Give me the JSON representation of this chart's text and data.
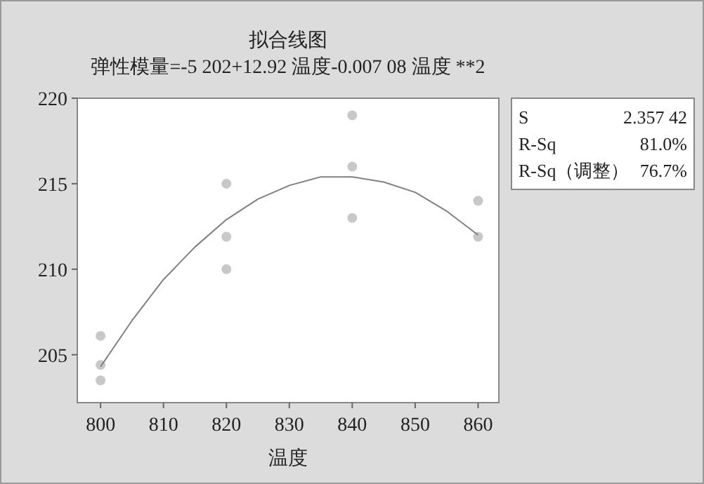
{
  "chart_data": {
    "type": "scatter",
    "title": "拟合线图",
    "subtitle": "弹性模量=-5 202+12.92 温度-0.007 08 温度 **2",
    "xlabel": "温度",
    "xlim": [
      796.3,
      863.3
    ],
    "xticks": [
      800,
      810,
      820,
      830,
      840,
      850,
      860
    ],
    "ylim": [
      202.2,
      220
    ],
    "yticks": [
      205,
      210,
      215,
      220
    ],
    "series": [
      {
        "color": "#c8c8c8",
        "marker": "circle",
        "x": [
          800,
          800,
          800,
          820,
          820,
          820,
          840,
          840,
          840,
          860,
          860
        ],
        "values": [
          206.1,
          204.4,
          203.5,
          215,
          211.9,
          210,
          219,
          216,
          213,
          214,
          211.9
        ]
      },
      {
        "type": "line",
        "color": "#808080",
        "marker": "none",
        "x": [
          800,
          805,
          810,
          815,
          820,
          825,
          830,
          835,
          840,
          845,
          850,
          855,
          860
        ],
        "values": [
          204.3,
          207.0,
          209.4,
          211.3,
          212.9,
          214.1,
          214.9,
          215.4,
          215.4,
          215.1,
          214.5,
          213.4,
          212.0
        ]
      }
    ],
    "annotations": [
      "S",
      "2.357 42",
      "R-Sq",
      "81.0%",
      "R-Sq（调整）",
      "76.7%"
    ],
    "grid": false
  }
}
